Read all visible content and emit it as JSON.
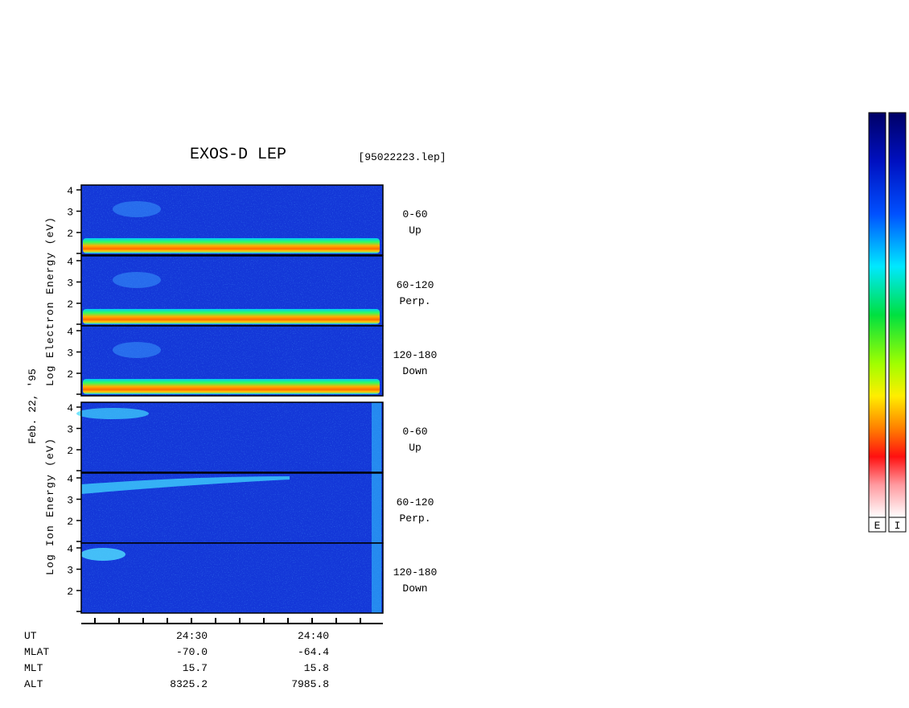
{
  "header": {
    "title": "EXOS-D LEP",
    "file": "[95022223.lep]"
  },
  "date": "Feb. 22, '95",
  "groups": [
    {
      "axis_label": "Log Electron Energy (eV)",
      "yticks": [
        4,
        3,
        2
      ],
      "panels": [
        {
          "range": "0-60",
          "direction": "Up"
        },
        {
          "range": "60-120",
          "direction": "Perp."
        },
        {
          "range": "120-180",
          "direction": "Down"
        }
      ]
    },
    {
      "axis_label": "Log Ion Energy (eV)",
      "yticks": [
        4,
        3,
        2
      ],
      "panels": [
        {
          "range": "0-60",
          "direction": "Up"
        },
        {
          "range": "60-120",
          "direction": "Perp."
        },
        {
          "range": "120-180",
          "direction": "Down"
        }
      ]
    }
  ],
  "ephemeris": {
    "rows": [
      [
        "UT",
        "24:30",
        "24:40"
      ],
      [
        "MLAT",
        "-70.0",
        "-64.4"
      ],
      [
        "MLT",
        "15.7",
        "15.8"
      ],
      [
        "ALT",
        "8325.2",
        "7985.8"
      ]
    ]
  },
  "colorbars": [
    "E",
    "I"
  ]
}
